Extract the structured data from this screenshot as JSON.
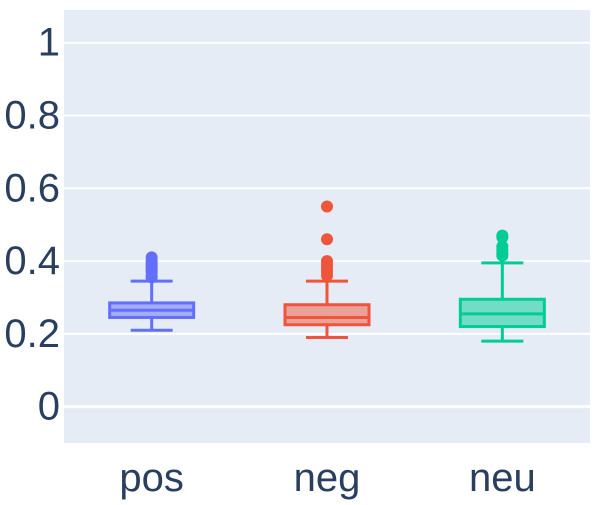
{
  "chart_data": {
    "type": "box",
    "title": "",
    "xlabel": "",
    "ylabel": "",
    "ylim": [
      -0.1,
      1.09
    ],
    "y_ticks": [
      0,
      0.2,
      0.4,
      0.6,
      0.8,
      1
    ],
    "y_tick_labels": [
      "0",
      "0.2",
      "0.4",
      "0.6",
      "0.8",
      "1"
    ],
    "categories": [
      "pos",
      "neg",
      "neu"
    ],
    "grid": true,
    "legend": "none",
    "colors": {
      "plot_bg": "#e5ecf6",
      "grid": "#ffffff",
      "tick_text": "#2a3f5f",
      "pos": "#636efa",
      "neg": "#ef553b",
      "neu": "#00cc96"
    },
    "series": [
      {
        "category": "pos",
        "min": 0.21,
        "q1": 0.245,
        "median": 0.265,
        "q3": 0.285,
        "max": 0.345,
        "outliers": [
          0.355,
          0.36,
          0.37,
          0.375,
          0.38,
          0.385,
          0.39,
          0.395,
          0.4,
          0.41
        ]
      },
      {
        "category": "neg",
        "min": 0.19,
        "q1": 0.225,
        "median": 0.245,
        "q3": 0.28,
        "max": 0.345,
        "outliers": [
          0.36,
          0.37,
          0.38,
          0.39,
          0.4,
          0.46,
          0.55
        ]
      },
      {
        "category": "neu",
        "min": 0.18,
        "q1": 0.22,
        "median": 0.255,
        "q3": 0.295,
        "max": 0.395,
        "outliers": [
          0.415,
          0.42,
          0.43,
          0.44,
          0.465,
          0.47
        ]
      }
    ]
  }
}
